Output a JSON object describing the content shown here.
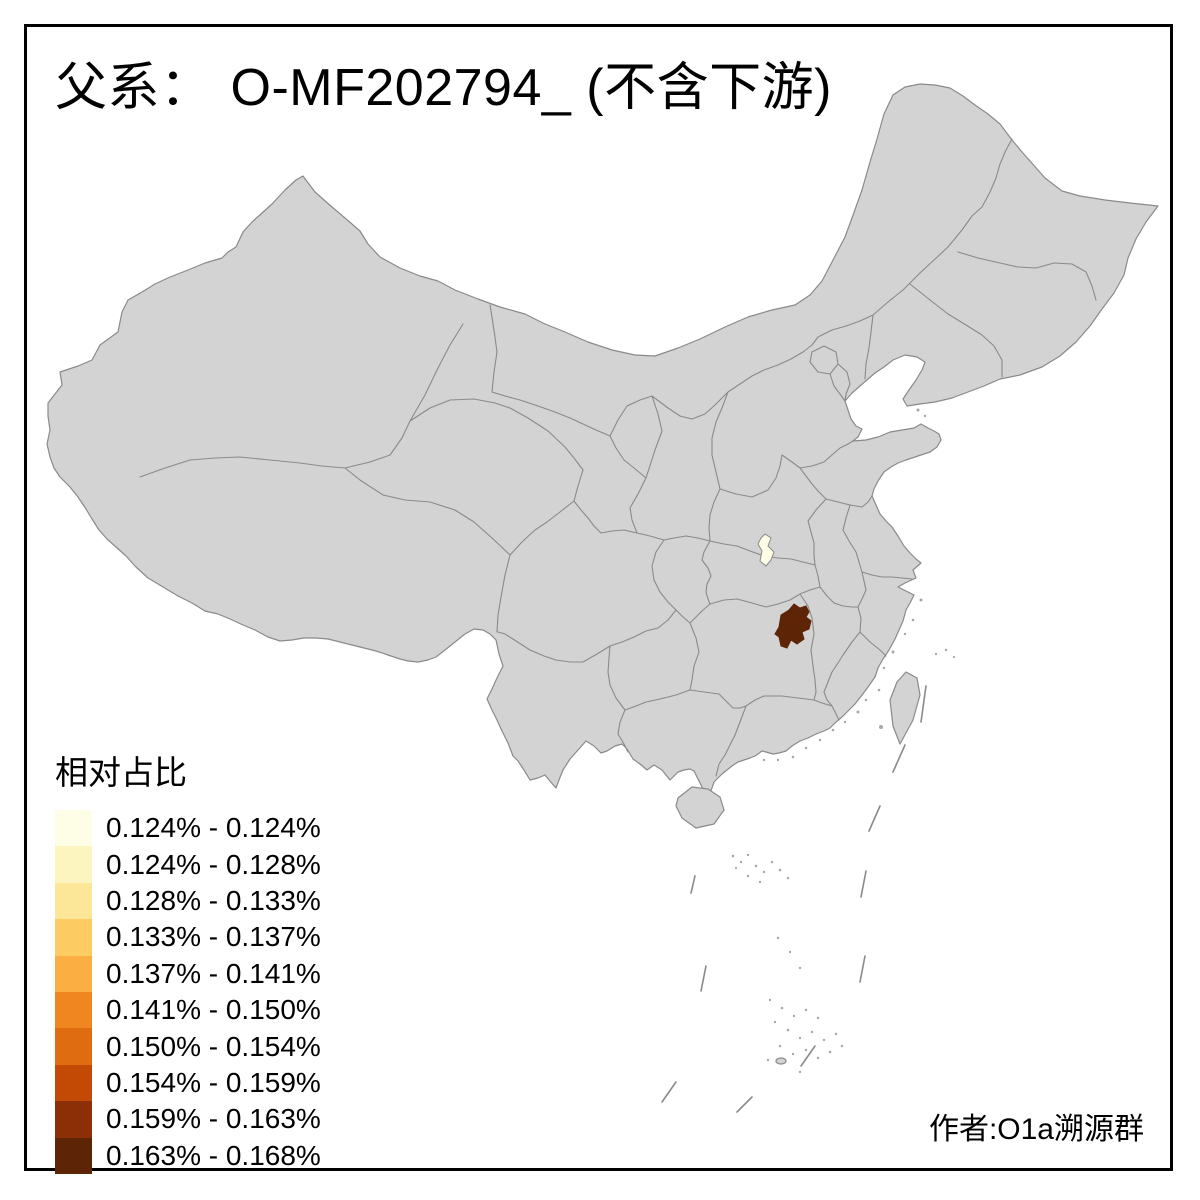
{
  "title": {
    "prefix": "父系：",
    "main": "O-MF202794_ (不含下游)"
  },
  "legend": {
    "title": "相对占比",
    "classes": [
      {
        "label": "0.124% - 0.124%",
        "color": "#FEFDE5"
      },
      {
        "label": "0.124% - 0.128%",
        "color": "#FCF5C0"
      },
      {
        "label": "0.128% - 0.133%",
        "color": "#FCE697"
      },
      {
        "label": "0.133% - 0.137%",
        "color": "#FCCB62"
      },
      {
        "label": "0.137% - 0.141%",
        "color": "#FBAE42"
      },
      {
        "label": "0.141% - 0.150%",
        "color": "#F0861F"
      },
      {
        "label": "0.150% - 0.154%",
        "color": "#E06C12"
      },
      {
        "label": "0.154% - 0.159%",
        "color": "#C24A04"
      },
      {
        "label": "0.159% - 0.163%",
        "color": "#8C2E06"
      },
      {
        "label": "0.163% - 0.168%",
        "color": "#5E2406"
      }
    ]
  },
  "credit": "作者:O1a溯源群",
  "map": {
    "land_fill": "#D3D3D3",
    "border_color": "#8A8A8A",
    "sea_color": "#FFFFFF",
    "frame_color": "#000000",
    "highlights": [
      {
        "name": "palest-region",
        "legend_label": "0.124% - 0.124%",
        "color": "#FEFDE5"
      },
      {
        "name": "darkest-region",
        "legend_label": "0.163% - 0.168%",
        "color": "#5E2406"
      }
    ]
  }
}
